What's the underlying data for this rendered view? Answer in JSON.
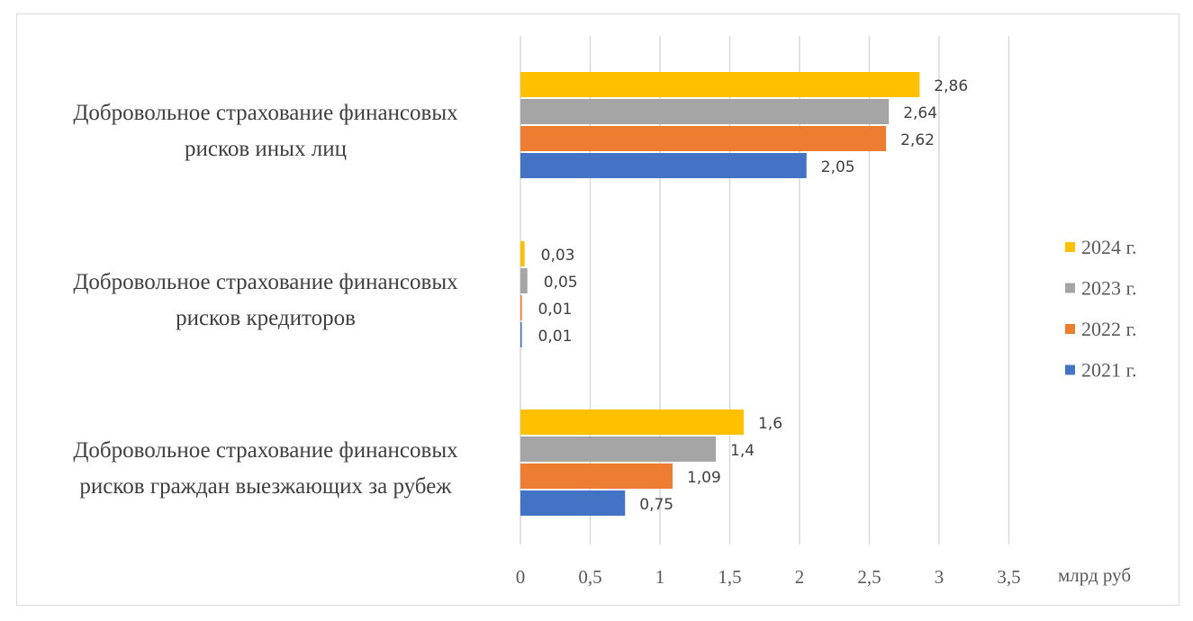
{
  "chart_data": {
    "type": "bar",
    "orientation": "horizontal",
    "categories": [
      [
        "Добровольное страхование финансовых",
        "рисков иных лиц"
      ],
      [
        "Добровольное страхование финансовых",
        "рисков кредиторов"
      ],
      [
        "Добровольное страхование финансовых",
        "рисков граждан выезжающих за рубеж"
      ]
    ],
    "series": [
      {
        "name": "2024 г.",
        "color": "#FFC000",
        "values": [
          2.86,
          0.03,
          1.6
        ],
        "labels": [
          "2,86",
          "0,03",
          "1,6"
        ]
      },
      {
        "name": "2023 г.",
        "color": "#A5A5A5",
        "values": [
          2.64,
          0.05,
          1.4
        ],
        "labels": [
          "2,64",
          "0,05",
          "1,4"
        ]
      },
      {
        "name": "2022 г.",
        "color": "#ED7D31",
        "values": [
          2.62,
          0.01,
          1.09
        ],
        "labels": [
          "2,62",
          "0,01",
          "1,09"
        ]
      },
      {
        "name": "2021 г.",
        "color": "#4472C4",
        "values": [
          2.05,
          0.01,
          0.75
        ],
        "labels": [
          "2,05",
          "0,01",
          "0,75"
        ]
      }
    ],
    "xlim": [
      0,
      3.5
    ],
    "xticks": [
      "0",
      "0,5",
      "1",
      "1,5",
      "2",
      "2,5",
      "3",
      "3,5"
    ],
    "xlabel": "млрд руб",
    "grid": true,
    "legend": "right"
  }
}
